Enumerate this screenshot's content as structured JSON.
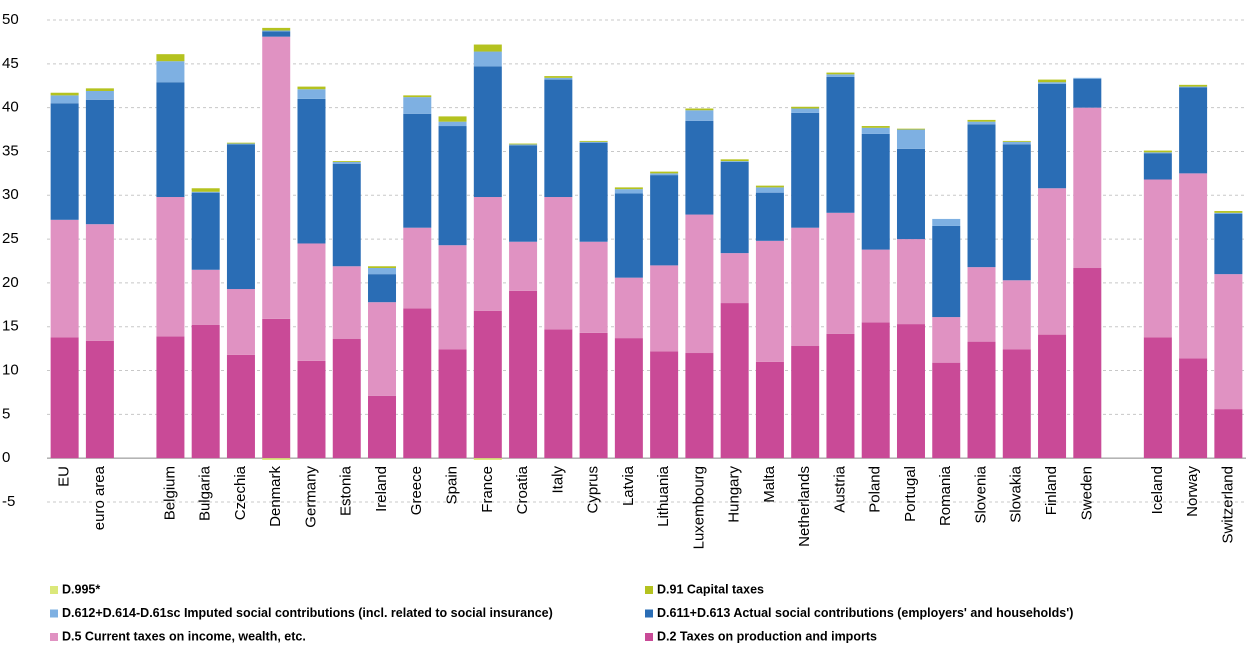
{
  "chart_data": {
    "type": "stacked-bar",
    "legend": "bottom",
    "grid": true,
    "ylim": [
      -5,
      50
    ],
    "yticks": [
      -5,
      0,
      5,
      10,
      15,
      20,
      25,
      30,
      35,
      40,
      45,
      50
    ],
    "categories": [
      "EU",
      "euro area",
      null,
      "Belgium",
      "Bulgaria",
      "Czechia",
      "Denmark",
      "Germany",
      "Estonia",
      "Ireland",
      "Greece",
      "Spain",
      "France",
      "Croatia",
      "Italy",
      "Cyprus",
      "Latvia",
      "Lithuania",
      "Luxembourg",
      "Hungary",
      "Malta",
      "Netherlands",
      "Austria",
      "Poland",
      "Portugal",
      "Romania",
      "Slovenia",
      "Slovakia",
      "Finland",
      "Sweden",
      null,
      "Iceland",
      "Norway",
      "Switzerland"
    ],
    "series": [
      {
        "name": "D.995*",
        "color": "#dbe87a",
        "values": [
          0,
          0,
          null,
          0,
          0,
          0,
          -0.2,
          0,
          0,
          0,
          0,
          0,
          -0.2,
          0,
          0,
          0,
          0,
          0,
          0,
          0,
          0,
          0,
          0,
          0,
          0,
          0,
          0,
          0,
          0,
          0,
          null,
          0,
          0,
          0
        ]
      },
      {
        "name": "D.91 Capital taxes",
        "color": "#b4c21f",
        "values": [
          0.3,
          0.3,
          null,
          0.8,
          0.4,
          0.1,
          0.3,
          0.3,
          0.1,
          0.2,
          0.2,
          0.6,
          0.8,
          0.1,
          0.2,
          0.1,
          0.2,
          0.2,
          0.2,
          0.2,
          0.2,
          0.2,
          0.2,
          0.2,
          0.1,
          0,
          0.2,
          0.1,
          0.3,
          0,
          null,
          0.2,
          0.2,
          0.2
        ]
      },
      {
        "name": "D.612+D.614-D.61sc Imputed social contributions (incl. related to social insurance)",
        "color": "#7eb0e2",
        "values": [
          0.9,
          1.0,
          null,
          2.4,
          0.1,
          0.1,
          0.1,
          1.1,
          0.2,
          0.7,
          1.9,
          0.5,
          1.7,
          0.1,
          0.2,
          0.1,
          0.5,
          0.2,
          1.2,
          0.1,
          0.6,
          0.5,
          0.3,
          0.7,
          2.2,
          0.8,
          0.3,
          0.3,
          0.2,
          0.1,
          null,
          0.1,
          0.1,
          0.1
        ]
      },
      {
        "name": "D.611+D.613 Actual social contributions (employers' and households')",
        "color": "#2a6db5",
        "values": [
          13.3,
          14.2,
          null,
          13.1,
          8.8,
          16.5,
          0.6,
          16.5,
          11.7,
          3.2,
          13.0,
          13.6,
          14.9,
          11.0,
          13.4,
          11.3,
          9.6,
          10.3,
          10.7,
          10.4,
          5.5,
          13.1,
          15.5,
          13.2,
          10.3,
          10.4,
          16.3,
          15.5,
          11.9,
          3.3,
          null,
          3.0,
          9.8,
          6.9
        ]
      },
      {
        "name": "D.5 Current taxes on income, wealth, etc.",
        "color": "#e092c2",
        "values": [
          13.4,
          13.3,
          null,
          15.9,
          6.3,
          7.5,
          32.2,
          13.4,
          8.3,
          10.7,
          9.2,
          11.9,
          13.0,
          5.6,
          15.1,
          10.4,
          6.9,
          9.8,
          15.8,
          5.7,
          13.8,
          13.5,
          13.8,
          8.3,
          9.7,
          5.2,
          8.5,
          7.9,
          16.7,
          18.3,
          null,
          18.0,
          21.1,
          15.4
        ]
      },
      {
        "name": "D.2 Taxes on production and imports",
        "color": "#c94a97",
        "values": [
          13.8,
          13.4,
          null,
          13.9,
          15.2,
          11.8,
          15.9,
          11.1,
          13.6,
          7.1,
          17.1,
          12.4,
          16.8,
          19.1,
          14.7,
          14.3,
          13.7,
          12.2,
          12.0,
          17.7,
          11.0,
          12.8,
          14.2,
          15.5,
          15.3,
          10.9,
          13.3,
          12.4,
          14.1,
          21.7,
          null,
          13.8,
          11.4,
          5.6
        ]
      }
    ]
  }
}
